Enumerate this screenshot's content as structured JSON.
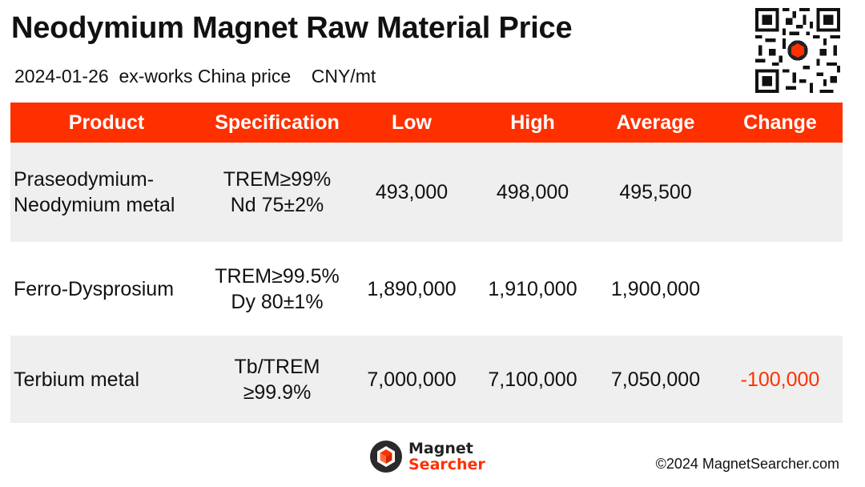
{
  "header": {
    "title": "Neodymium Magnet Raw Material Price",
    "date": "2024-01-26",
    "price_basis": "ex-works China price",
    "unit": "CNY/mt"
  },
  "colors": {
    "accent": "#ff3000",
    "row_band": "#efefef"
  },
  "table": {
    "columns": [
      "Product",
      "Specification",
      "Low",
      "High",
      "Average",
      "Change"
    ],
    "rows": [
      {
        "product": [
          "Praseodymium-",
          "Neodymium metal"
        ],
        "specification": [
          "TREM≥99%",
          "Nd 75±2%"
        ],
        "low": "493,000",
        "high": "498,000",
        "average": "495,500",
        "change": ""
      },
      {
        "product": [
          "Ferro-Dysprosium"
        ],
        "specification": [
          "TREM≥99.5%",
          "Dy 80±1%"
        ],
        "low": "1,890,000",
        "high": "1,910,000",
        "average": "1,900,000",
        "change": ""
      },
      {
        "product": [
          "Terbium metal"
        ],
        "specification": [
          "Tb/TREM",
          "≥99.9%"
        ],
        "low": "7,000,000",
        "high": "7,100,000",
        "average": "7,050,000",
        "change": "-100,000"
      }
    ]
  },
  "footer": {
    "logo_line1": "Magnet",
    "logo_line2": "Searcher",
    "copyright": "©2024 MagnetSearcher.com",
    "qr_icon": "qr-code-icon"
  }
}
